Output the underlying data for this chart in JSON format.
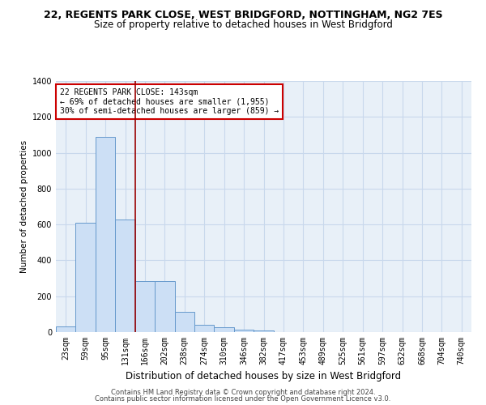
{
  "title": "22, REGENTS PARK CLOSE, WEST BRIDGFORD, NOTTINGHAM, NG2 7ES",
  "subtitle": "Size of property relative to detached houses in West Bridgford",
  "xlabel": "Distribution of detached houses by size in West Bridgford",
  "ylabel": "Number of detached properties",
  "categories": [
    "23sqm",
    "59sqm",
    "95sqm",
    "131sqm",
    "166sqm",
    "202sqm",
    "238sqm",
    "274sqm",
    "310sqm",
    "346sqm",
    "382sqm",
    "417sqm",
    "453sqm",
    "489sqm",
    "525sqm",
    "561sqm",
    "597sqm",
    "632sqm",
    "668sqm",
    "704sqm",
    "740sqm"
  ],
  "values": [
    30,
    610,
    1090,
    630,
    285,
    285,
    115,
    40,
    25,
    15,
    10,
    0,
    0,
    0,
    0,
    0,
    0,
    0,
    0,
    0,
    0
  ],
  "bar_color": "#ccdff5",
  "bar_edge_color": "#6699cc",
  "vline_x": 3.5,
  "vline_color": "#990000",
  "annotation_text": "22 REGENTS PARK CLOSE: 143sqm\n← 69% of detached houses are smaller (1,955)\n30% of semi-detached houses are larger (859) →",
  "annotation_box_color": "#ffffff",
  "annotation_box_edge": "#cc0000",
  "ylim": [
    0,
    1400
  ],
  "yticks": [
    0,
    200,
    400,
    600,
    800,
    1000,
    1200,
    1400
  ],
  "grid_color": "#c8d8ec",
  "background_color": "#e8f0f8",
  "footer1": "Contains HM Land Registry data © Crown copyright and database right 2024.",
  "footer2": "Contains public sector information licensed under the Open Government Licence v3.0.",
  "title_fontsize": 9,
  "subtitle_fontsize": 8.5,
  "xlabel_fontsize": 8.5,
  "ylabel_fontsize": 7.5,
  "tick_fontsize": 7,
  "annotation_fontsize": 7,
  "footer_fontsize": 6
}
